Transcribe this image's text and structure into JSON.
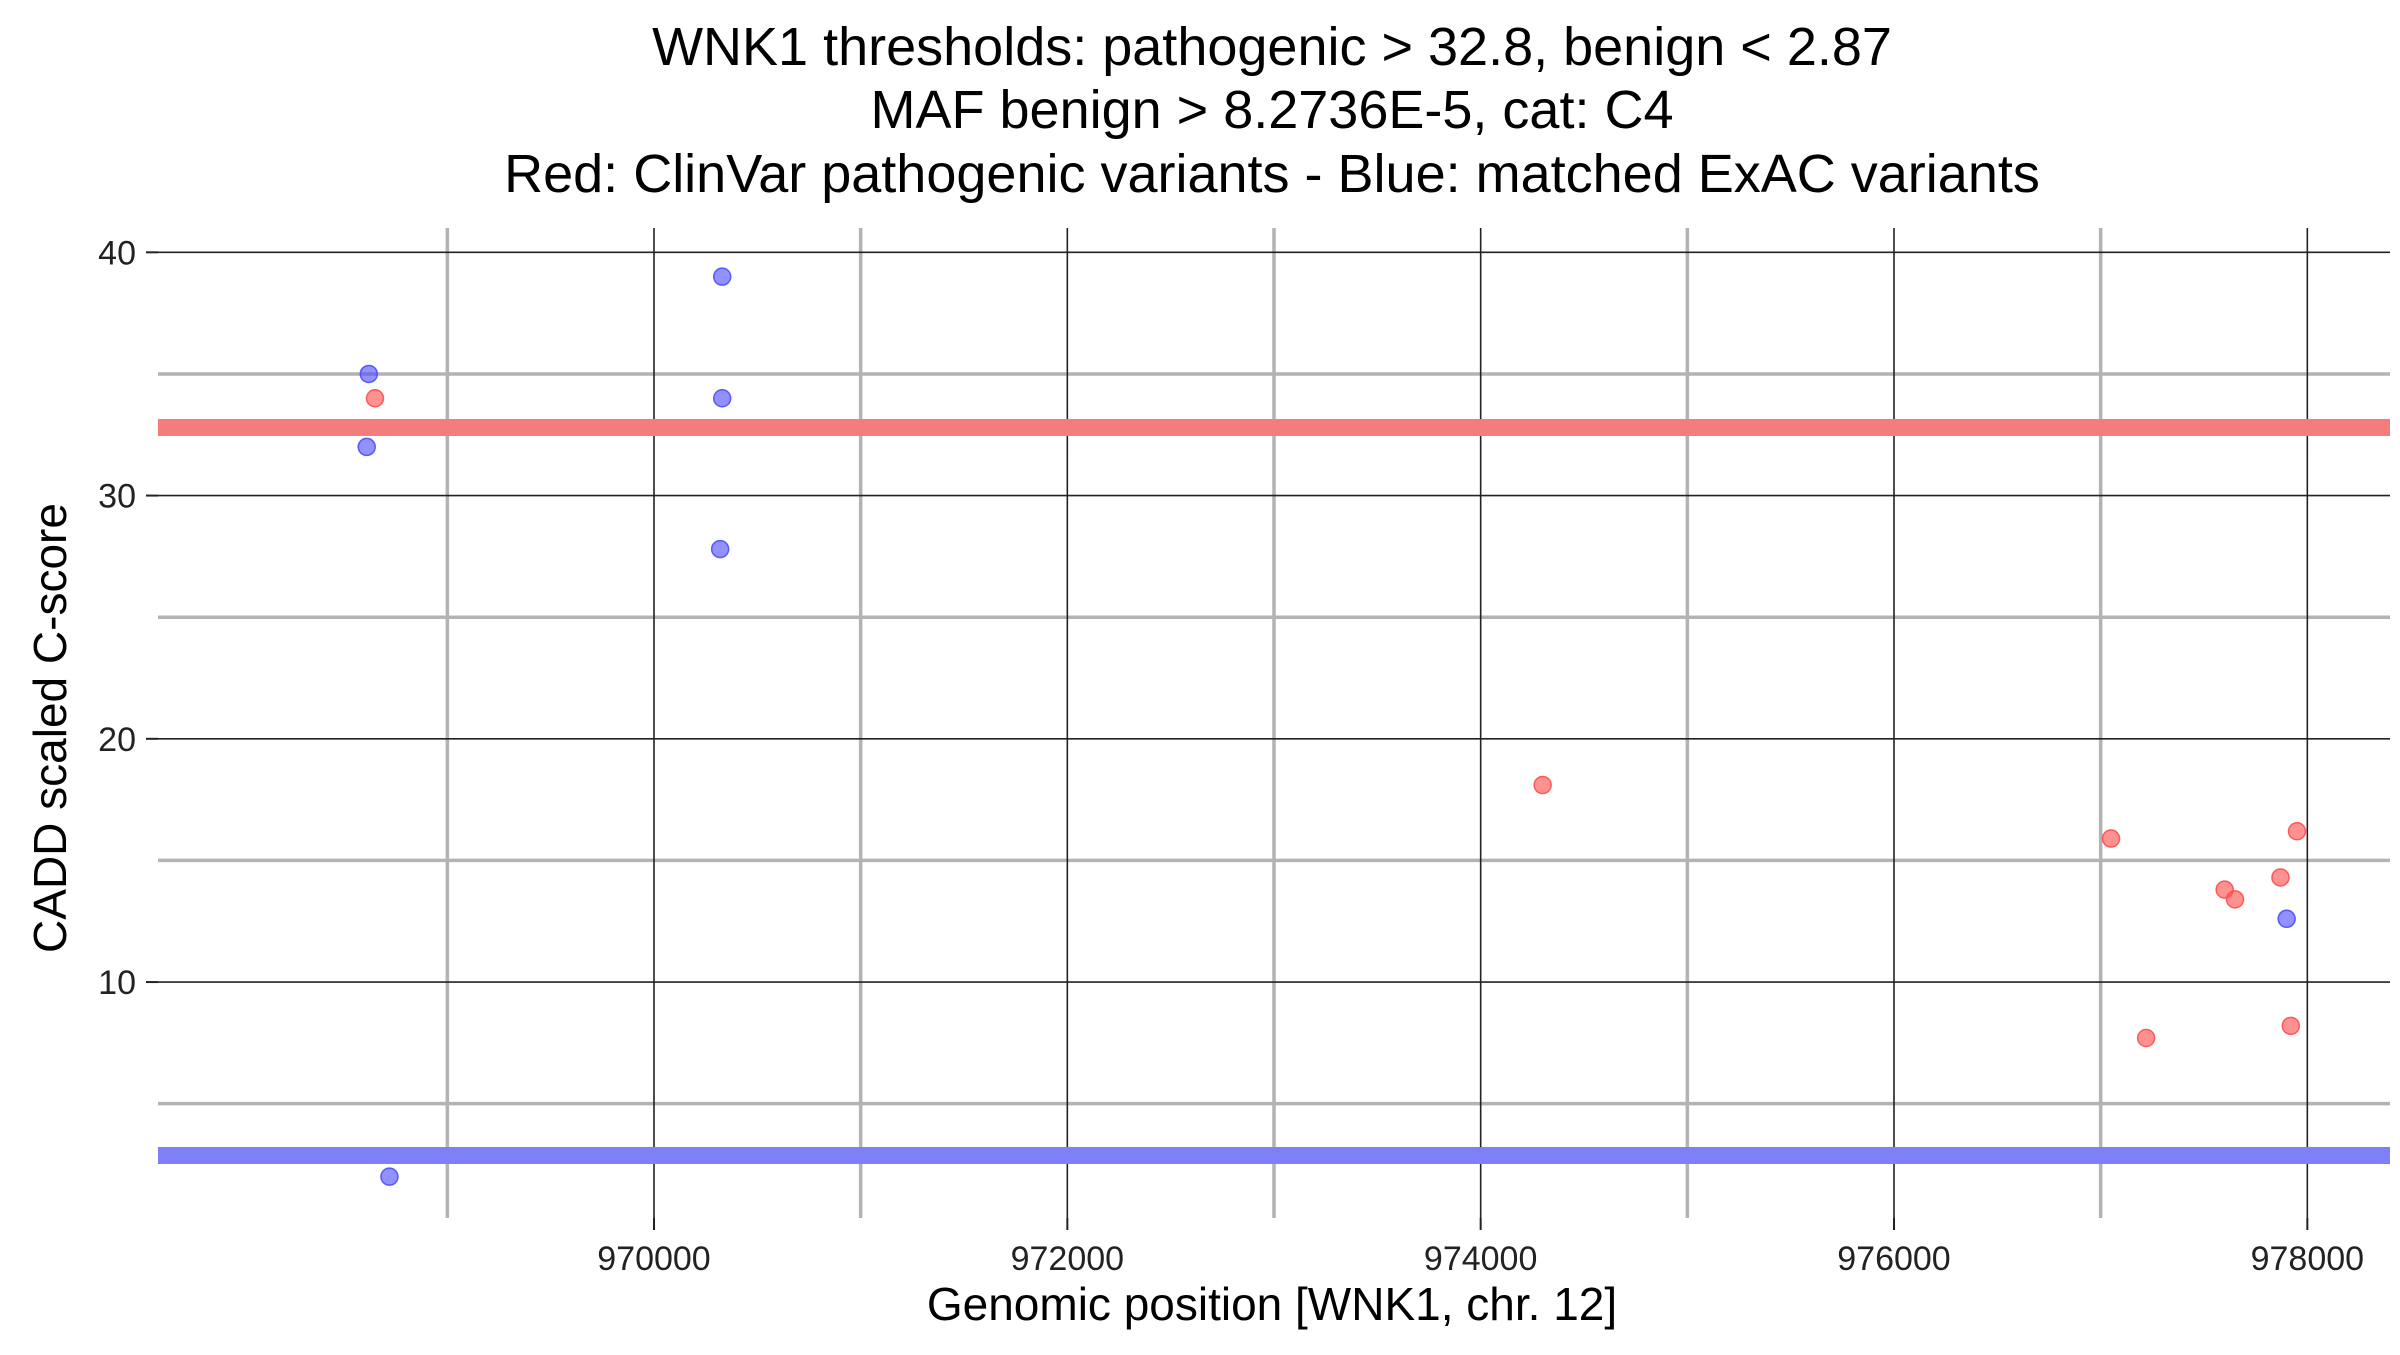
{
  "chart_data": {
    "type": "scatter",
    "title_lines": [
      "WNK1 thresholds: pathogenic > 32.8, benign < 2.87",
      "MAF benign > 8.2736E-5, cat: C4",
      "Red: ClinVar pathogenic variants - Blue: matched ExAC variants"
    ],
    "xlabel": "Genomic position [WNK1, chr. 12]",
    "ylabel": "CADD scaled C-score",
    "xlim": [
      967600,
      978400
    ],
    "ylim": [
      0.3,
      41
    ],
    "x_major_ticks": [
      970000,
      972000,
      974000,
      976000,
      978000
    ],
    "x_major_tick_labels": [
      "970000",
      "972000",
      "974000",
      "976000",
      "978000"
    ],
    "x_minor_gridlines": [
      969000,
      971000,
      973000,
      975000,
      977000
    ],
    "y_major_ticks": [
      10,
      20,
      30,
      40
    ],
    "y_major_tick_labels": [
      "10",
      "20",
      "30",
      "40"
    ],
    "y_minor_gridlines": [
      5,
      15,
      25,
      35
    ],
    "grid": true,
    "thresholds": [
      {
        "name": "pathogenic",
        "y": 32.8,
        "color": "#f47c7c"
      },
      {
        "name": "benign",
        "y": 2.87,
        "color": "#7f7ff7"
      }
    ],
    "series": [
      {
        "name": "ClinVar pathogenic variants",
        "color": "#ff4d4d",
        "points": [
          {
            "x": 968650,
            "y": 34
          },
          {
            "x": 974300,
            "y": 18.1
          },
          {
            "x": 977050,
            "y": 15.9
          },
          {
            "x": 977220,
            "y": 7.7
          },
          {
            "x": 977600,
            "y": 13.8
          },
          {
            "x": 977650,
            "y": 13.4
          },
          {
            "x": 977870,
            "y": 14.3
          },
          {
            "x": 977920,
            "y": 8.2
          },
          {
            "x": 977950,
            "y": 16.2
          }
        ]
      },
      {
        "name": "matched ExAC variants",
        "color": "#4d4dff",
        "points": [
          {
            "x": 968620,
            "y": 35
          },
          {
            "x": 968610,
            "y": 32
          },
          {
            "x": 968720,
            "y": 2.0
          },
          {
            "x": 970330,
            "y": 39
          },
          {
            "x": 970330,
            "y": 34
          },
          {
            "x": 970320,
            "y": 27.8
          },
          {
            "x": 977900,
            "y": 12.6
          }
        ]
      }
    ]
  }
}
